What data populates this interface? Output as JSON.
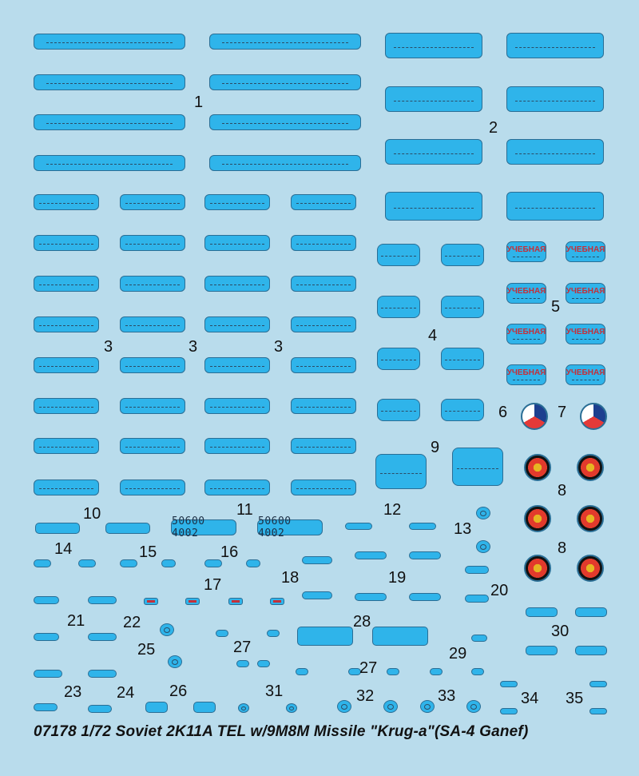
{
  "sheet": {
    "title": "07178 1/72 Soviet 2K11A  TEL w/9M8M Missile \"Krug-a\"(SA-4 Ganef)",
    "labels": {
      "n1": "1",
      "n2": "2",
      "n3a": "3",
      "n3b": "3",
      "n3c": "3",
      "n4": "4",
      "n5": "5",
      "n6": "6",
      "n7": "7",
      "n8a": "8",
      "n8b": "8",
      "n9": "9",
      "n10": "10",
      "n11": "11",
      "n12": "12",
      "n13": "13",
      "n14": "14",
      "n15": "15",
      "n16": "16",
      "n17": "17",
      "n18": "18",
      "n19": "19",
      "n20": "20",
      "n21": "21",
      "n22": "22",
      "n23": "23",
      "n24": "24",
      "n25": "25",
      "n26": "26",
      "n27a": "27",
      "n27b": "27",
      "n28": "28",
      "n29": "29",
      "n30": "30",
      "n31": "31",
      "n32": "32",
      "n33": "33",
      "n34": "34",
      "n35": "35"
    },
    "plates": {
      "p1": "50600 4002",
      "p2": "50600 4002"
    },
    "ucheb": [
      "УЧЕБНАЯ",
      "УЧЕБНАЯ",
      "УЧЕБНАЯ",
      "УЧЕБНАЯ",
      "УЧЕБНАЯ",
      "УЧЕБНАЯ",
      "УЧЕБНАЯ",
      "УЧЕБНАЯ"
    ],
    "colors": {
      "background": "#b9dcec",
      "decal": "#2fb4ea",
      "outline": "#2a6e95",
      "red": "#c4303a"
    }
  }
}
